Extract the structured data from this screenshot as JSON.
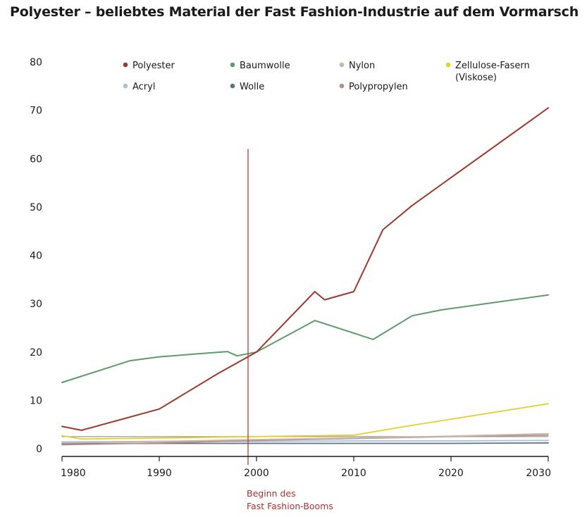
{
  "title": "Polyester – beliebtes Material der Fast Fashion-Industrie auf dem Vormarsch",
  "colors": {
    "Polyester": "#9b3a2c",
    "Baumwolle": "#5e9a6c",
    "Nylon": "#c9b7a8",
    "Zellulose-Fasern (Viskose)": "#e6cf2e",
    "Acryl": "#a9bfdd",
    "Wolle": "#5d7384",
    "Polypropylen": "#b89088",
    "marker": "#b8383a",
    "axis": "#1a1a1a",
    "ref_gray": "#9a9a9a"
  },
  "chart_data": {
    "type": "line",
    "xlim": [
      1980,
      2030
    ],
    "ylim": [
      0,
      80
    ],
    "x_ticks": [
      "1980",
      "1990",
      "2000",
      "2010",
      "2020",
      "2030"
    ],
    "y_ticks": [
      "0",
      "10",
      "20",
      "30",
      "40",
      "50",
      "60",
      "70",
      "80"
    ],
    "grid": false,
    "legend_position": "top",
    "series": [
      {
        "name": "Polyester",
        "points": [
          [
            1980,
            4.6
          ],
          [
            1982,
            3.8
          ],
          [
            1990,
            8.2
          ],
          [
            1996,
            15.5
          ],
          [
            2000,
            20
          ],
          [
            2006,
            32.5
          ],
          [
            2007,
            30.8
          ],
          [
            2010,
            32.5
          ],
          [
            2013,
            45.3
          ],
          [
            2016,
            50.3
          ],
          [
            2030,
            70.5
          ]
        ]
      },
      {
        "name": "Baumwolle",
        "points": [
          [
            1980,
            13.7
          ],
          [
            1987,
            18.2
          ],
          [
            1990,
            19
          ],
          [
            1997,
            20.1
          ],
          [
            1998,
            19.2
          ],
          [
            2000,
            20
          ],
          [
            2006,
            26.5
          ],
          [
            2012,
            22.6
          ],
          [
            2016,
            27.5
          ],
          [
            2019,
            28.7
          ],
          [
            2030,
            31.8
          ]
        ]
      },
      {
        "name": "Nylon",
        "points": [
          [
            1980,
            1.2
          ],
          [
            1990,
            1.5
          ],
          [
            2000,
            1.9
          ],
          [
            2010,
            2.2
          ],
          [
            2020,
            2.6
          ],
          [
            2030,
            3.1
          ]
        ]
      },
      {
        "name": "Zellulose-Fasern (Viskose)",
        "points": [
          [
            1980,
            2.7
          ],
          [
            1982,
            2.0
          ],
          [
            1990,
            2.2
          ],
          [
            2000,
            2.5
          ],
          [
            2010,
            2.8
          ],
          [
            2015,
            4.5
          ],
          [
            2030,
            9.3
          ]
        ]
      },
      {
        "name": "Acryl",
        "points": [
          [
            1980,
            1.4
          ],
          [
            1990,
            1.5
          ],
          [
            2000,
            1.5
          ],
          [
            2010,
            1.6
          ],
          [
            2020,
            1.6
          ],
          [
            2030,
            1.7
          ]
        ]
      },
      {
        "name": "Wolle",
        "points": [
          [
            1980,
            1.0
          ],
          [
            1990,
            1.1
          ],
          [
            2000,
            1.1
          ],
          [
            2010,
            1.1
          ],
          [
            2020,
            1.1
          ],
          [
            2030,
            1.2
          ]
        ]
      },
      {
        "name": "Polypropylen",
        "points": [
          [
            1980,
            0.8
          ],
          [
            1990,
            1.2
          ],
          [
            2000,
            1.7
          ],
          [
            2010,
            2.1
          ],
          [
            2020,
            2.5
          ],
          [
            2030,
            2.8
          ]
        ]
      }
    ],
    "reference_lines": [
      {
        "y": 2.5
      }
    ],
    "legend_entries": [
      {
        "name": "Polyester",
        "label_lines": [
          "Polyester"
        ]
      },
      {
        "name": "Baumwolle",
        "label_lines": [
          "Baumwolle"
        ]
      },
      {
        "name": "Nylon",
        "label_lines": [
          "Nylon"
        ]
      },
      {
        "name": "Zellulose-Fasern (Viskose)",
        "label_lines": [
          "Zellulose-Fasern",
          "(Viskose)"
        ]
      },
      {
        "name": "Acryl",
        "label_lines": [
          "Acryl"
        ]
      },
      {
        "name": "Wolle",
        "label_lines": [
          "Wolle"
        ]
      },
      {
        "name": "Polypropylen",
        "label_lines": [
          "Polypropylen"
        ]
      }
    ],
    "annotations": [
      {
        "x": 2000,
        "y_top": 62,
        "label_lines": [
          "Beginn des",
          "Fast Fashion-Booms"
        ]
      }
    ]
  }
}
